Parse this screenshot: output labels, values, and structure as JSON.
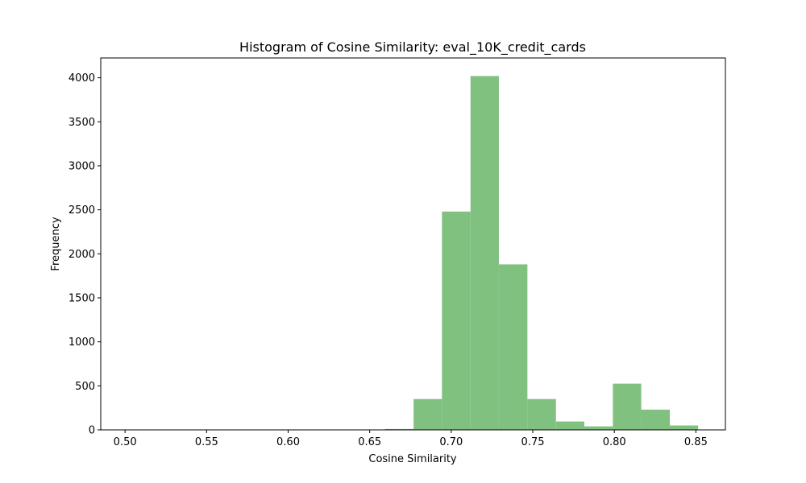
{
  "chart_data": {
    "type": "bar",
    "title": "Histogram of Cosine Similarity: eval_10K_credit_cards",
    "xlabel": "Cosine Similarity",
    "ylabel": "Frequency",
    "xlim": [
      0.4851,
      0.8681
    ],
    "ylim": [
      0,
      4225
    ],
    "x_ticks": [
      "0.50",
      "0.55",
      "0.60",
      "0.65",
      "0.70",
      "0.75",
      "0.80",
      "0.85"
    ],
    "y_ticks": [
      "0",
      "500",
      "1000",
      "1500",
      "2000",
      "2500",
      "3000",
      "3500",
      "4000"
    ],
    "bar_color": "#81c17f",
    "bins": [
      {
        "start": 0.5023,
        "end": 0.5198,
        "count": 1
      },
      {
        "start": 0.5198,
        "end": 0.5372,
        "count": 0
      },
      {
        "start": 0.5372,
        "end": 0.5547,
        "count": 0
      },
      {
        "start": 0.5547,
        "end": 0.5721,
        "count": 0
      },
      {
        "start": 0.5721,
        "end": 0.5896,
        "count": 0
      },
      {
        "start": 0.5896,
        "end": 0.607,
        "count": 0
      },
      {
        "start": 0.607,
        "end": 0.6245,
        "count": 0
      },
      {
        "start": 0.6245,
        "end": 0.642,
        "count": 0
      },
      {
        "start": 0.642,
        "end": 0.6594,
        "count": 2
      },
      {
        "start": 0.6594,
        "end": 0.6769,
        "count": 10
      },
      {
        "start": 0.6769,
        "end": 0.6943,
        "count": 350
      },
      {
        "start": 0.6943,
        "end": 0.7118,
        "count": 2480
      },
      {
        "start": 0.7118,
        "end": 0.7292,
        "count": 4020
      },
      {
        "start": 0.7292,
        "end": 0.7467,
        "count": 1880
      },
      {
        "start": 0.7467,
        "end": 0.7642,
        "count": 350
      },
      {
        "start": 0.7642,
        "end": 0.7816,
        "count": 95
      },
      {
        "start": 0.7816,
        "end": 0.7991,
        "count": 40
      },
      {
        "start": 0.7991,
        "end": 0.8165,
        "count": 525
      },
      {
        "start": 0.8165,
        "end": 0.834,
        "count": 230
      },
      {
        "start": 0.834,
        "end": 0.8514,
        "count": 50
      }
    ]
  }
}
